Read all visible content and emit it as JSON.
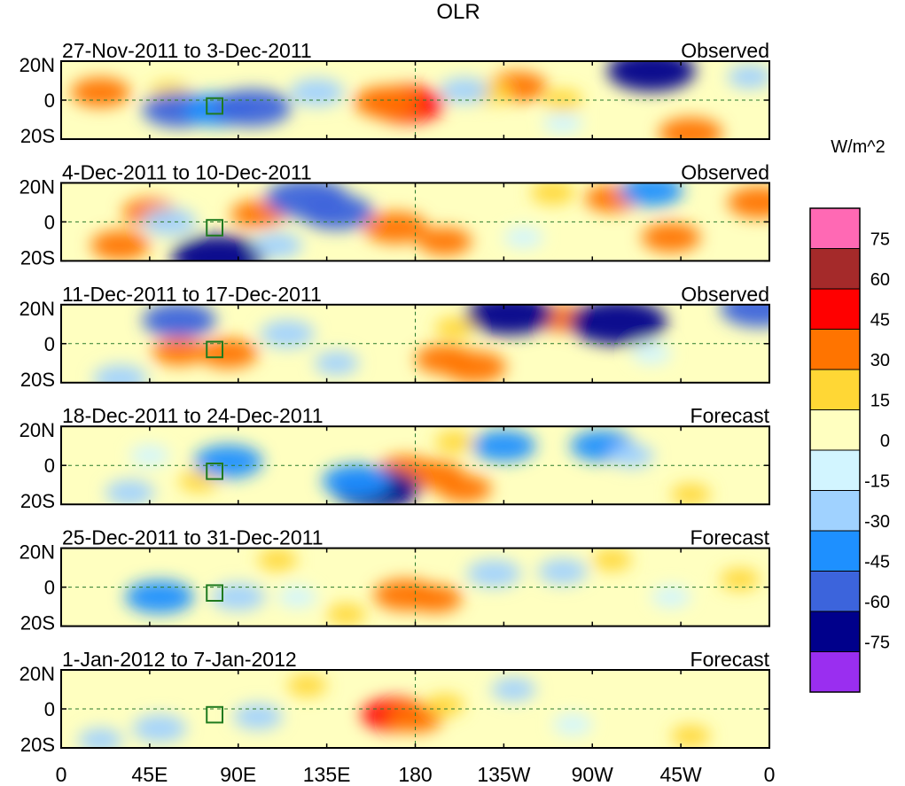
{
  "chart_data": {
    "type": "heatmap",
    "title": "OLR",
    "colorbar": {
      "unit_label": "W/m^2",
      "tick_labels": [
        "75",
        "60",
        "45",
        "30",
        "15",
        "0",
        "-15",
        "-30",
        "-45",
        "-60",
        "-75"
      ],
      "levels_top_to_bottom": [
        {
          "min": 75,
          "max": null,
          "color": "#ff69b4"
        },
        {
          "min": 60,
          "max": 75,
          "color": "#a52a2a"
        },
        {
          "min": 45,
          "max": 60,
          "color": "#ff0000"
        },
        {
          "min": 30,
          "max": 45,
          "color": "#ff7400"
        },
        {
          "min": 15,
          "max": 30,
          "color": "#ffd735"
        },
        {
          "min": 0,
          "max": 15,
          "color": "#ffffc0"
        },
        {
          "min": -15,
          "max": 0,
          "color": "#d2f5ff"
        },
        {
          "min": -30,
          "max": -15,
          "color": "#a0d2ff"
        },
        {
          "min": -45,
          "max": -30,
          "color": "#1e90ff"
        },
        {
          "min": -60,
          "max": -45,
          "color": "#3c64dc"
        },
        {
          "min": -75,
          "max": -60,
          "color": "#00008b"
        },
        {
          "min": null,
          "max": -75,
          "color": "#9a2ef0"
        }
      ]
    },
    "x_axis": {
      "range_deg_east": [
        0,
        360
      ],
      "tick_values_deg_east": [
        0,
        45,
        90,
        135,
        180,
        225,
        270,
        315,
        360
      ],
      "tick_labels": [
        "0",
        "45E",
        "90E",
        "135E",
        "180",
        "135W",
        "90W",
        "45W",
        "0"
      ]
    },
    "y_axis": {
      "range_deg": [
        -20,
        20
      ],
      "tick_values_deg": [
        20,
        0,
        -20
      ],
      "tick_labels": [
        "20N",
        "0",
        "20S"
      ]
    },
    "panels": [
      {
        "period": "27-Nov-2011 to 3-Dec-2011",
        "kind": "Observed",
        "anomalies": [
          {
            "lon": 175,
            "lat": -2,
            "value": 55
          },
          {
            "lon": 165,
            "lat": -1,
            "value": 40
          },
          {
            "lon": 232,
            "lat": 7,
            "value": 35
          },
          {
            "lon": 218,
            "lat": 4,
            "value": 20
          },
          {
            "lon": 320,
            "lat": -17,
            "value": 40
          },
          {
            "lon": 20,
            "lat": 4,
            "value": 35
          },
          {
            "lon": 55,
            "lat": 4,
            "value": 15
          },
          {
            "lon": 255,
            "lat": 0,
            "value": 15
          },
          {
            "lon": 60,
            "lat": -5,
            "value": -50
          },
          {
            "lon": 80,
            "lat": -5,
            "value": -45
          },
          {
            "lon": 97,
            "lat": -4,
            "value": -55
          },
          {
            "lon": 130,
            "lat": 4,
            "value": -30
          },
          {
            "lon": 300,
            "lat": 15,
            "value": -65
          },
          {
            "lon": 205,
            "lat": 5,
            "value": -25
          },
          {
            "lon": 350,
            "lat": 12,
            "value": -20
          },
          {
            "lon": 255,
            "lat": -12,
            "value": -15
          }
        ]
      },
      {
        "period": "4-Dec-2011 to 10-Dec-2011",
        "kind": "Observed",
        "anomalies": [
          {
            "lon": 170,
            "lat": -3,
            "value": 40
          },
          {
            "lon": 195,
            "lat": -10,
            "value": 30
          },
          {
            "lon": 45,
            "lat": 5,
            "value": 30
          },
          {
            "lon": 30,
            "lat": -12,
            "value": 35
          },
          {
            "lon": 280,
            "lat": 12,
            "value": 30
          },
          {
            "lon": 310,
            "lat": -8,
            "value": 35
          },
          {
            "lon": 355,
            "lat": 10,
            "value": 40
          },
          {
            "lon": 250,
            "lat": 15,
            "value": 20
          },
          {
            "lon": 100,
            "lat": 4,
            "value": 30
          },
          {
            "lon": 125,
            "lat": 12,
            "value": -60
          },
          {
            "lon": 140,
            "lat": 5,
            "value": -50
          },
          {
            "lon": 80,
            "lat": -18,
            "value": -70
          },
          {
            "lon": 55,
            "lat": 0,
            "value": -30
          },
          {
            "lon": 300,
            "lat": 16,
            "value": -40
          },
          {
            "lon": 110,
            "lat": -12,
            "value": -25
          },
          {
            "lon": 235,
            "lat": -8,
            "value": -15
          }
        ]
      },
      {
        "period": "11-Dec-2011 to 17-Dec-2011",
        "kind": "Observed",
        "anomalies": [
          {
            "lon": 195,
            "lat": -8,
            "value": 35
          },
          {
            "lon": 210,
            "lat": -12,
            "value": 40
          },
          {
            "lon": 85,
            "lat": -5,
            "value": 35
          },
          {
            "lon": 60,
            "lat": -4,
            "value": 30
          },
          {
            "lon": 255,
            "lat": 13,
            "value": 30
          },
          {
            "lon": 200,
            "lat": 8,
            "value": 15
          },
          {
            "lon": 228,
            "lat": 15,
            "value": -65
          },
          {
            "lon": 283,
            "lat": 11,
            "value": -75
          },
          {
            "lon": 60,
            "lat": 12,
            "value": -50
          },
          {
            "lon": 355,
            "lat": 18,
            "value": -55
          },
          {
            "lon": 115,
            "lat": 5,
            "value": -30
          },
          {
            "lon": 30,
            "lat": -18,
            "value": -30
          },
          {
            "lon": 140,
            "lat": -10,
            "value": -20
          },
          {
            "lon": 300,
            "lat": -5,
            "value": -15
          }
        ]
      },
      {
        "period": "18-Dec-2011 to 24-Dec-2011",
        "kind": "Forecast",
        "anomalies": [
          {
            "lon": 190,
            "lat": -5,
            "value": 35
          },
          {
            "lon": 205,
            "lat": -12,
            "value": 30
          },
          {
            "lon": 175,
            "lat": -2,
            "value": 30
          },
          {
            "lon": 70,
            "lat": -8,
            "value": 15
          },
          {
            "lon": 200,
            "lat": 12,
            "value": 15
          },
          {
            "lon": 320,
            "lat": -15,
            "value": 15
          },
          {
            "lon": 160,
            "lat": -12,
            "value": -65
          },
          {
            "lon": 150,
            "lat": -8,
            "value": -45
          },
          {
            "lon": 85,
            "lat": 2,
            "value": -45
          },
          {
            "lon": 225,
            "lat": 10,
            "value": -40
          },
          {
            "lon": 275,
            "lat": 10,
            "value": -40
          },
          {
            "lon": 45,
            "lat": 5,
            "value": -15
          },
          {
            "lon": 35,
            "lat": -14,
            "value": -25
          },
          {
            "lon": 290,
            "lat": 5,
            "value": -20
          }
        ]
      },
      {
        "period": "25-Dec-2011 to 31-Dec-2011",
        "kind": "Forecast",
        "anomalies": [
          {
            "lon": 175,
            "lat": -4,
            "value": 40
          },
          {
            "lon": 190,
            "lat": -6,
            "value": 30
          },
          {
            "lon": 145,
            "lat": -14,
            "value": 15
          },
          {
            "lon": 110,
            "lat": 14,
            "value": 15
          },
          {
            "lon": 280,
            "lat": 14,
            "value": 15
          },
          {
            "lon": 345,
            "lat": 4,
            "value": 15
          },
          {
            "lon": 50,
            "lat": -5,
            "value": -45
          },
          {
            "lon": 90,
            "lat": -5,
            "value": -30
          },
          {
            "lon": 220,
            "lat": 7,
            "value": -30
          },
          {
            "lon": 255,
            "lat": 8,
            "value": -25
          },
          {
            "lon": 310,
            "lat": -5,
            "value": -15
          },
          {
            "lon": 120,
            "lat": -5,
            "value": -15
          }
        ]
      },
      {
        "period": "1-Jan-2012 to 7-Jan-2012",
        "kind": "Forecast",
        "anomalies": [
          {
            "lon": 170,
            "lat": -3,
            "value": 45
          },
          {
            "lon": 180,
            "lat": -5,
            "value": 30
          },
          {
            "lon": 195,
            "lat": 2,
            "value": 15
          },
          {
            "lon": 320,
            "lat": -14,
            "value": 15
          },
          {
            "lon": 125,
            "lat": 12,
            "value": 15
          },
          {
            "lon": 50,
            "lat": -10,
            "value": -30
          },
          {
            "lon": 100,
            "lat": -4,
            "value": -25
          },
          {
            "lon": 230,
            "lat": 10,
            "value": -20
          },
          {
            "lon": 260,
            "lat": -8,
            "value": -15
          },
          {
            "lon": 20,
            "lat": -16,
            "value": -20
          }
        ]
      }
    ]
  }
}
